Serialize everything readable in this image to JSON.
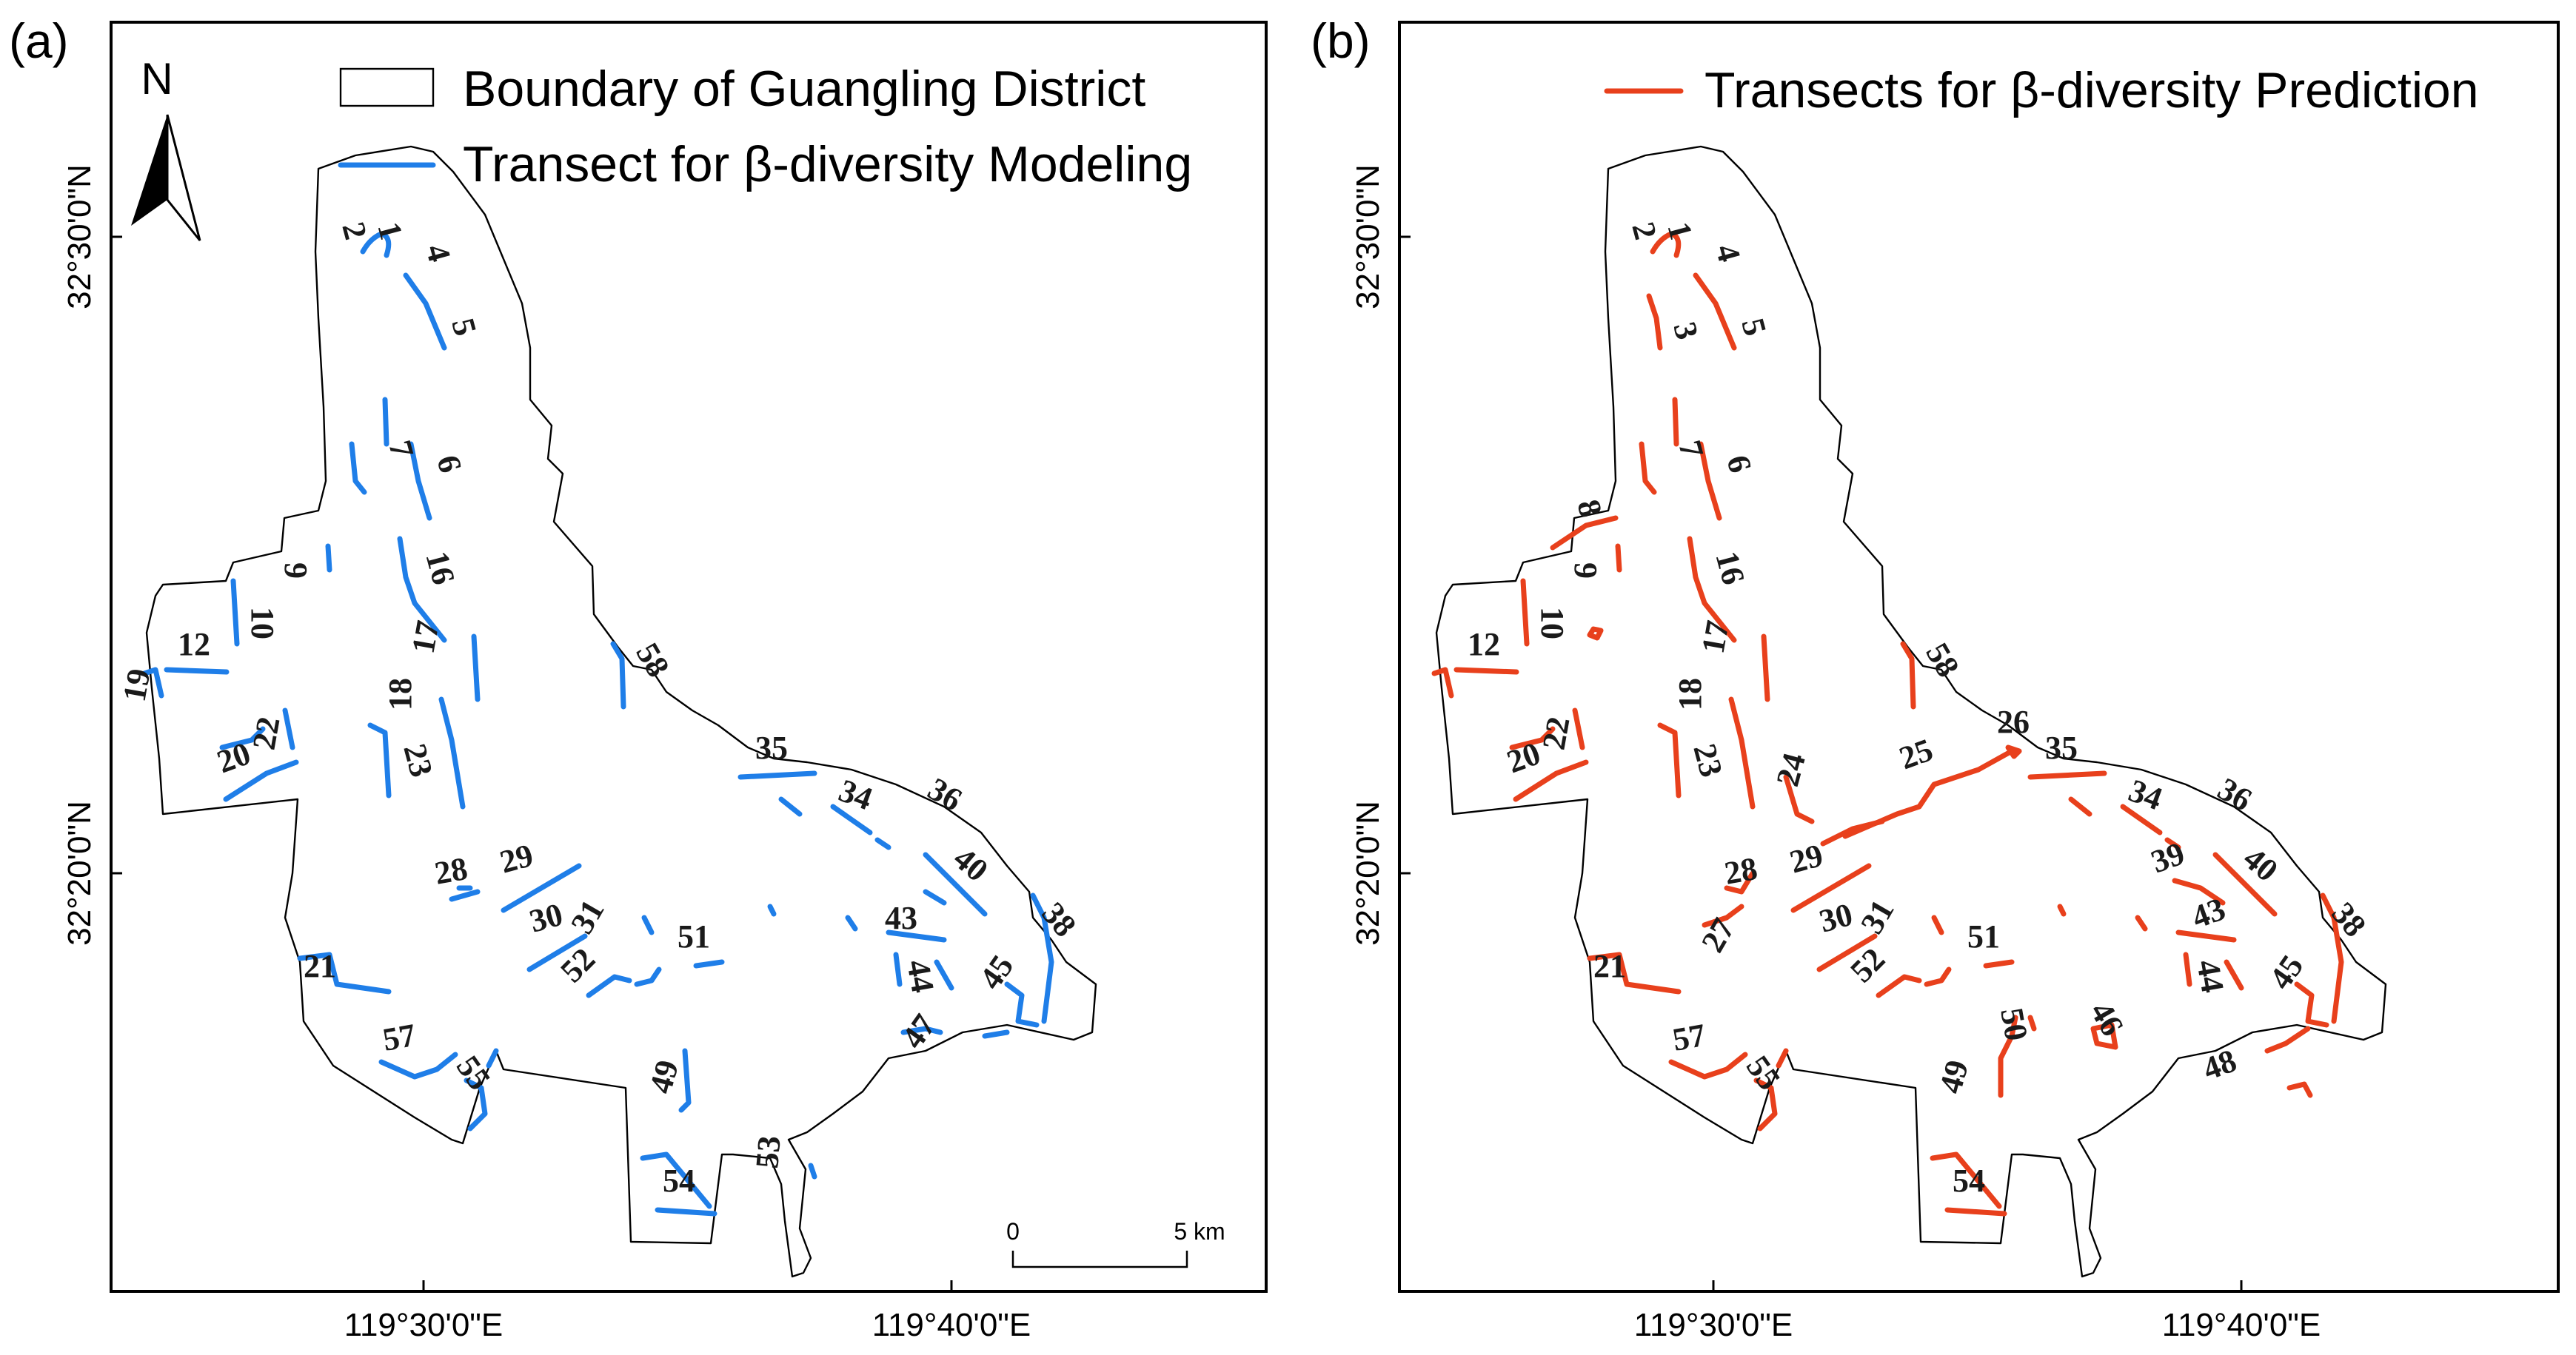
{
  "panels": [
    {
      "tag": "(a)",
      "legend": {
        "boundary_label": "Boundary of Guangling District",
        "transect_label": "Transect for β-diversity Modeling",
        "transect_color": "#1f7ee8"
      },
      "north_label": "N",
      "transect_labels": [
        "2",
        "1",
        "4",
        "5",
        "7",
        "6",
        "9",
        "10",
        "16",
        "17",
        "12",
        "19",
        "18",
        "22",
        "20",
        "23",
        "58",
        "35",
        "34",
        "36",
        "40",
        "28",
        "29",
        "30",
        "31",
        "38",
        "52",
        "51",
        "43",
        "44",
        "21",
        "45",
        "57",
        "55",
        "47",
        "49",
        "53",
        "54"
      ],
      "scale_bar": {
        "zero": "0",
        "end": "5 km"
      }
    },
    {
      "tag": "(b)",
      "legend": {
        "transect_label": "Transects for β-diversity Prediction",
        "transect_color": "#e8401c"
      },
      "transect_labels": [
        "2",
        "1",
        "4",
        "3",
        "5",
        "7",
        "6",
        "8",
        "9",
        "16",
        "10",
        "17",
        "12",
        "18",
        "22",
        "20",
        "23",
        "24",
        "58",
        "25",
        "26",
        "35",
        "34",
        "36",
        "40",
        "39",
        "28",
        "29",
        "27",
        "30",
        "31",
        "43",
        "38",
        "52",
        "51",
        "44",
        "21",
        "45",
        "57",
        "55",
        "50",
        "46",
        "48",
        "49",
        "54"
      ]
    }
  ],
  "axes": {
    "lat_labels": [
      "32°30'0\"N",
      "32°20'0\"N"
    ],
    "lon_labels": [
      "119°30'0\"E",
      "119°40'0\"E"
    ]
  }
}
